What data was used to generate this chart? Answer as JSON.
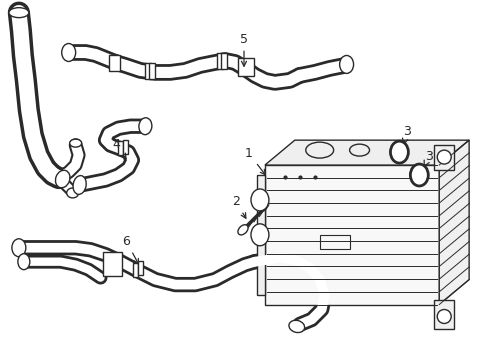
{
  "bg_color": "#ffffff",
  "line_color": "#2a2a2a",
  "lw": 1.0,
  "fig_width": 4.89,
  "fig_height": 3.6,
  "dpi": 100
}
